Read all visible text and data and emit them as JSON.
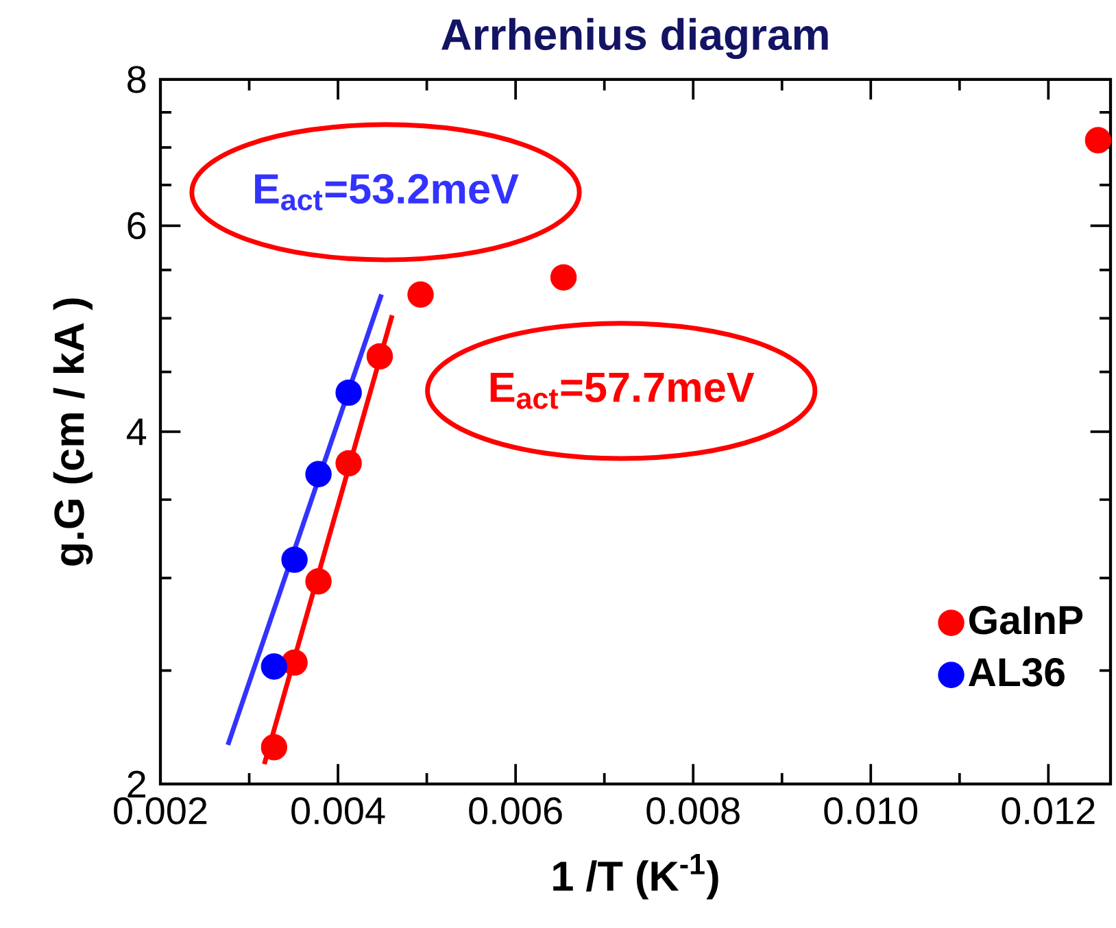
{
  "chart_data": {
    "type": "scatter",
    "title": "Arrhenius diagram",
    "xlabel": "1 /T (K$^{-1}$)",
    "ylabel": "g.G (cm / kA )",
    "xlim": [
      0.002,
      0.0127
    ],
    "ylim": [
      2,
      8
    ],
    "log": "y",
    "xticks": [
      0.002,
      {
        "value": 0.003,
        "label": null
      },
      0.004,
      {
        "value": 0.005,
        "label": null
      },
      0.006,
      {
        "value": 0.007,
        "label": null
      },
      0.008,
      {
        "value": 0.009,
        "label": null
      },
      {
        "value": 0.01,
        "label": "0.010"
      },
      {
        "value": 0.011,
        "label": null
      },
      0.012
    ],
    "yticks": [
      2,
      {
        "value": 2.5,
        "label": null
      },
      {
        "value": 3,
        "label": null
      },
      {
        "value": 3.5,
        "label": null
      },
      4,
      {
        "value": 4.5,
        "label": null
      },
      {
        "value": 5,
        "label": null
      },
      {
        "value": 5.5,
        "label": null
      },
      6,
      {
        "value": 6.5,
        "label": null
      },
      {
        "value": 7,
        "label": null
      },
      {
        "value": 7.5,
        "label": null
      },
      8
    ],
    "legend": "bottom right",
    "series": [
      {
        "name": "GaInP",
        "color": "#ff0000",
        "marker": "circle",
        "x": [
          0.00328,
          0.00351,
          0.00378,
          0.00412,
          0.00447,
          0.00493,
          0.00654,
          0.01256
        ],
        "values": [
          2.15,
          2.54,
          2.98,
          3.76,
          4.64,
          5.24,
          5.42,
          7.1
        ]
      },
      {
        "name": "AL36",
        "color": "#0000ff",
        "marker": "circle",
        "x": [
          0.00328,
          0.00351,
          0.00378,
          0.00412
        ],
        "values": [
          2.52,
          3.11,
          3.68,
          4.32
        ]
      },
      {
        "type": "line",
        "marker": "none",
        "color": "#3333ff",
        "x": [
          0.00276,
          0.00449
        ],
        "values": [
          2.16,
          5.24
        ]
      },
      {
        "type": "line",
        "marker": "none",
        "color": "#ff0000",
        "x": [
          0.00317,
          0.00461
        ],
        "values": [
          2.08,
          5.03
        ]
      }
    ],
    "annotations": [
      "E$_{act}$=53.2meV",
      "E$_{act}$=57.7meV"
    ]
  }
}
